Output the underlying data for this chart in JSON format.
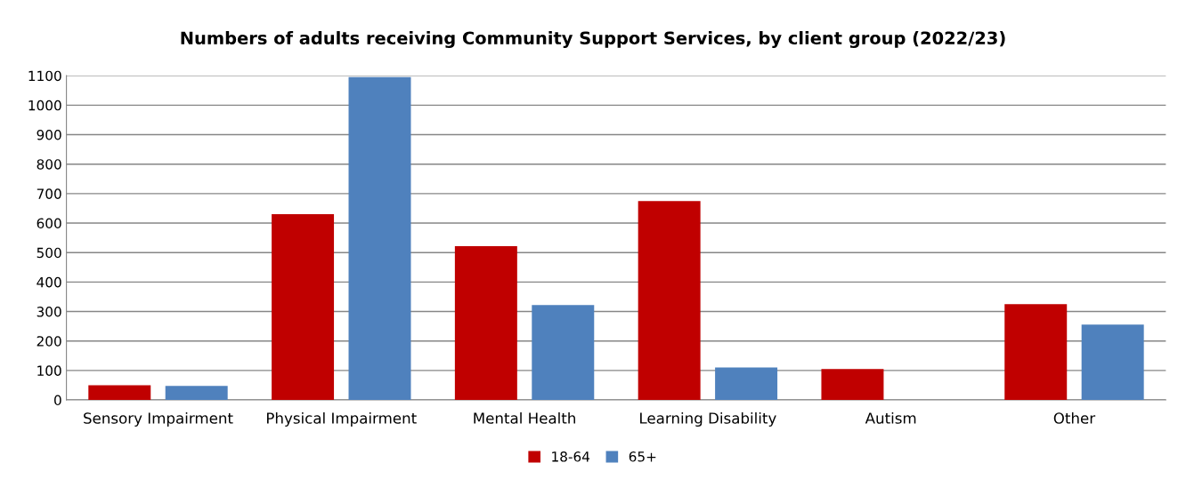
{
  "chart_data": {
    "type": "bar",
    "title": "Numbers of adults receiving Community Support Services, by client group (2022/23)",
    "categories": [
      "Sensory Impairment",
      "Physical Impairment",
      "Mental Health",
      "Learning Disability",
      "Autism",
      "Other"
    ],
    "series": [
      {
        "name": "18-64",
        "color": "#c00000",
        "values": [
          50,
          630,
          522,
          675,
          105,
          325
        ]
      },
      {
        "name": "65+",
        "color": "#4f81bd",
        "values": [
          48,
          1095,
          322,
          110,
          null,
          256
        ]
      }
    ],
    "ylim": [
      0,
      1100
    ],
    "yticks": [
      0,
      100,
      200,
      300,
      400,
      500,
      600,
      700,
      800,
      900,
      1000,
      1100
    ],
    "grid": "y",
    "legend": "bottom"
  }
}
